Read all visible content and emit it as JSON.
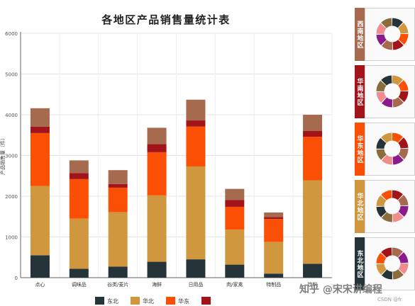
{
  "chart_data": {
    "type": "bar",
    "stacked": true,
    "title": "各地区产品销售量统计表",
    "ylabel": "产品销售量（件）",
    "xlabel": "",
    "ylim": [
      0,
      6000
    ],
    "yticks": [
      0,
      1000,
      2000,
      3000,
      4000,
      5000,
      6000
    ],
    "grid": true,
    "legend_position": "bottom",
    "categories": [
      "点心",
      "调味品",
      "谷类/麦片",
      "海鲜",
      "日用品",
      "肉/家禽",
      "特制品",
      "饮料"
    ],
    "series": [
      {
        "name": "东北",
        "color": "#253439",
        "values": [
          550,
          220,
          270,
          390,
          450,
          320,
          100,
          340
        ]
      },
      {
        "name": "华北",
        "color": "#d0973e",
        "values": [
          1700,
          1230,
          1340,
          1630,
          2280,
          860,
          780,
          2050
        ]
      },
      {
        "name": "华东",
        "color": "#fb4f05",
        "values": [
          1300,
          970,
          600,
          1060,
          980,
          560,
          560,
          1070
        ]
      },
      {
        "name": "华南",
        "color": "#a3131a",
        "values": [
          160,
          150,
          90,
          200,
          150,
          170,
          50,
          140
        ]
      },
      {
        "name": "西南",
        "color": "#a66a4e",
        "values": [
          450,
          310,
          340,
          400,
          510,
          270,
          110,
          400
        ]
      }
    ],
    "legend_visible": [
      "东北",
      "华北",
      "华东",
      ""
    ]
  },
  "side_panels": [
    {
      "label": "西南地区",
      "color": "#a66a4e"
    },
    {
      "label": "华南地区",
      "color": "#a3131a"
    },
    {
      "label": "华东地区",
      "color": "#fb4f05"
    },
    {
      "label": "华北地区",
      "color": "#d0973e"
    },
    {
      "label": "东北地区",
      "color": "#253439"
    }
  ],
  "donut_palette": [
    "#253439",
    "#d0973e",
    "#fb4f05",
    "#a3131a",
    "#a66a4e",
    "#8b1a8b",
    "#f08c8c",
    "#8a6d3b"
  ],
  "watermark": "知乎 @宋宋讲编程",
  "source": "CSDN @fr"
}
